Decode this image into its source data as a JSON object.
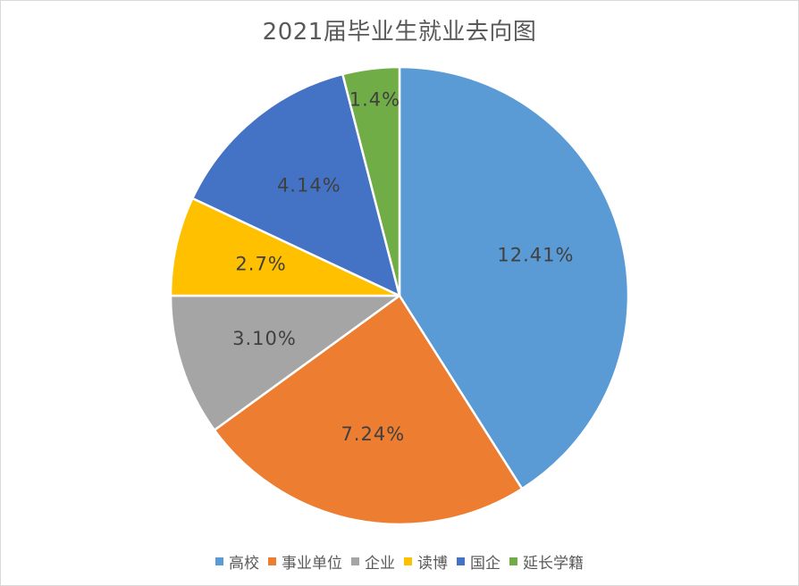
{
  "chart_data": {
    "type": "pie",
    "title": "2021届毕业生就业去向图",
    "categories": [
      "高校",
      "事业单位",
      "企业",
      "读博",
      "国企",
      "延长学籍"
    ],
    "values": [
      41,
      24,
      10,
      7,
      14,
      4
    ],
    "data_labels": [
      "12.41%",
      "7.24%",
      "3.10%",
      "2.7%",
      "4.14%",
      "1.4%"
    ],
    "colors": [
      "#5B9BD5",
      "#ED7D31",
      "#A5A5A5",
      "#FFC000",
      "#4472C4",
      "#70AD47"
    ],
    "legend_position": "bottom",
    "start_angle": "12 o'clock",
    "direction": "clockwise"
  }
}
